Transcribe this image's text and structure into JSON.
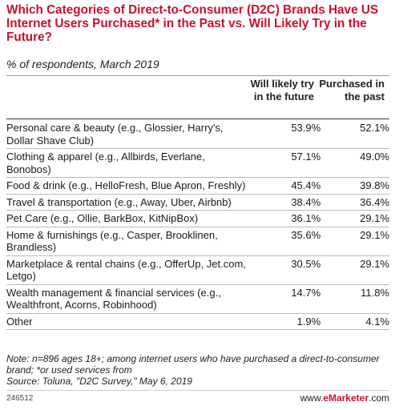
{
  "chart_data": {
    "type": "table",
    "title": "Which Categories of Direct-to-Consumer (D2C) Brands Have US Internet Users Purchased* in the Past vs. Will Likely Try in the Future?",
    "subtitle": "% of respondents, March 2019",
    "columns": [
      "Will likely try in the future",
      "Purchased in the past"
    ],
    "rows": [
      {
        "category": "Personal care & beauty (e.g., Glossier, Harry's, Dollar Shave Club)",
        "future": "53.9%",
        "past": "52.1%"
      },
      {
        "category": "Clothing & apparel (e.g., Allbirds, Everlane, Bonobos)",
        "future": "57.1%",
        "past": "49.0%"
      },
      {
        "category": "Food & drink (e.g., HelloFresh, Blue Apron, Freshly)",
        "future": "45.4%",
        "past": "39.8%"
      },
      {
        "category": "Travel & transportation (e.g., Away, Uber, Airbnb)",
        "future": "38.4%",
        "past": "36.4%"
      },
      {
        "category": "Pet Care (e.g., Ollie, BarkBox, KitNipBox)",
        "future": "36.1%",
        "past": "29.1%"
      },
      {
        "category": "Home & furnishings (e.g., Casper, Brooklinen, Brandless)",
        "future": "35.6%",
        "past": "29.1%"
      },
      {
        "category": "Marketplace & rental chains (e.g., OfferUp, Jet.com, Letgo)",
        "future": "30.5%",
        "past": "29.1%"
      },
      {
        "category": "Wealth management & financial services (e.g., Wealthfront, Acorns, Robinhood)",
        "future": "14.7%",
        "past": "11.8%"
      },
      {
        "category": "Other",
        "future": "1.9%",
        "past": "4.1%"
      }
    ],
    "note": "Note: n=896 ages 18+; among internet users who have purchased a direct-to-consumer brand; *or used services from",
    "source": "Source: Toluna, \"D2C Survey,\" May 6, 2019"
  },
  "footer": {
    "chart_id": "246512",
    "brand_prefix": "www.",
    "brand_name": "eMarketer",
    "brand_suffix": ".com"
  },
  "colors": {
    "title": "#c8102e",
    "brand": "#c8102e"
  }
}
